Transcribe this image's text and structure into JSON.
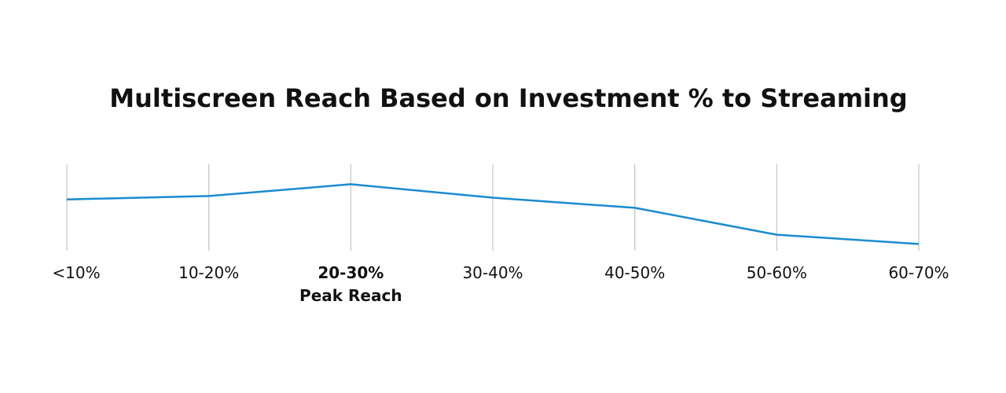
{
  "chart_data": {
    "type": "line",
    "title": "Multiscreen Reach Based on Investment % to Streaming",
    "xlabel": "",
    "ylabel": "",
    "categories": [
      "<10%",
      "10-20%",
      "20-30%",
      "30-40%",
      "40-50%",
      "50-60%",
      "60-70%"
    ],
    "values": [
      62,
      66,
      80,
      64,
      52,
      20,
      9
    ],
    "ylim": [
      0,
      100
    ],
    "highlight": {
      "category": "20-30%",
      "annotation": "Peak Reach"
    },
    "grid": "vertical",
    "line_color": "#1a8bd0",
    "grid_color": "#c8c8c8",
    "y_axis_shown": false
  }
}
